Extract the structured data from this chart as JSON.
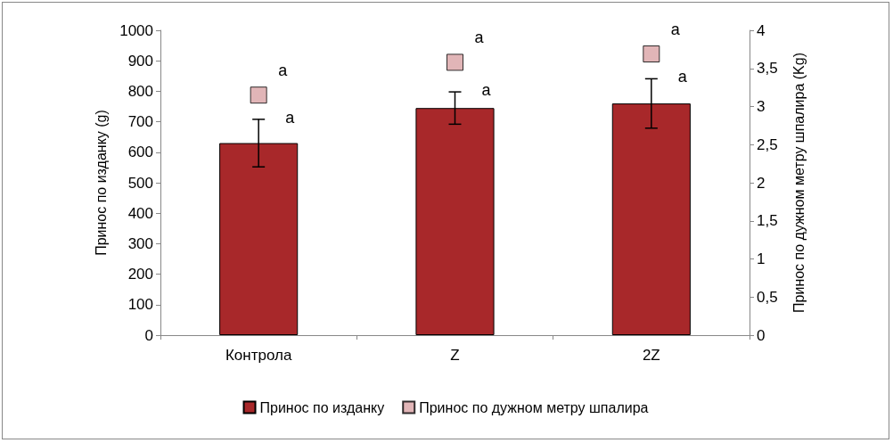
{
  "chart_data": {
    "type": "bar",
    "ylabel": "Принос по изданку (g)",
    "y2label": "Принос по дужном метру шпалира (Kg)",
    "categories": [
      "Контрола",
      "Z",
      "2Z"
    ],
    "series": [
      {
        "name": "Принос по изданку",
        "color": "#a8282a",
        "values": [
          630,
          745,
          760
        ],
        "errors": [
          78,
          53,
          81
        ]
      },
      {
        "name": "Принос по дужном метру шпалира",
        "type": "scatter",
        "axis": "y2",
        "marker": "square",
        "color": "#d9a3a5",
        "values": [
          3.15,
          3.58,
          3.69
        ]
      }
    ],
    "ylim": [
      0,
      1000
    ],
    "yticks": [
      0,
      100,
      200,
      300,
      400,
      500,
      600,
      700,
      800,
      900,
      1000
    ],
    "y2lim": [
      0,
      4
    ],
    "y2ticks": [
      0,
      {
        "value": 0.5,
        "label": "0,5"
      },
      1,
      {
        "value": 1.5,
        "label": "1,5"
      },
      2,
      {
        "value": 2.5,
        "label": "2,5"
      },
      3,
      {
        "value": 3.5,
        "label": "3,5"
      },
      4
    ],
    "annotations": [
      {
        "text": "a",
        "x": "Контрола",
        "y": 708
      },
      "a",
      {
        "text": "a",
        "x": "Z",
        "y": 798
      },
      "a",
      {
        "text": "a",
        "x": "2Z",
        "y": 841
      },
      "a"
    ],
    "grid": false,
    "legend": "bottom"
  }
}
